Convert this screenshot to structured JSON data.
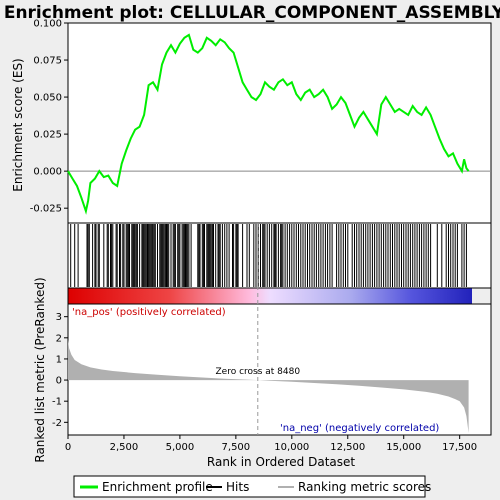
{
  "chart_data": {
    "type": "line",
    "title": "Enrichment plot: CELLULAR_COMPONENT_ASSEMBLY",
    "xlabel": "Rank in Ordered Dataset",
    "es_ylabel": "Enrichment score (ES)",
    "metric_ylabel": "Ranked list metric (PreRanked)",
    "xlim": [
      0,
      18900
    ],
    "es_ylim": [
      -0.035,
      0.1
    ],
    "metric_ylim": [
      -2.6,
      3.6
    ],
    "x_ticks": [
      0,
      2500,
      5000,
      7500,
      10000,
      12500,
      15000,
      17500
    ],
    "x_tick_labels": [
      "0",
      "2,500",
      "5,000",
      "7,500",
      "10,000",
      "12,500",
      "15,000",
      "17,500"
    ],
    "es_ticks": [
      -0.025,
      0.0,
      0.025,
      0.05,
      0.075,
      0.1
    ],
    "es_tick_labels": [
      "-0.025",
      "0.000",
      "0.025",
      "0.050",
      "0.075",
      "0.100"
    ],
    "metric_ticks": [
      -2,
      -1,
      0,
      1,
      2,
      3
    ],
    "metric_tick_labels": [
      "-2",
      "-1",
      "0",
      "1",
      "2",
      "3"
    ],
    "enrichment_profile": {
      "name": "Enrichment profile",
      "color": "#00ee00",
      "x": [
        0,
        200,
        400,
        600,
        800,
        900,
        1000,
        1200,
        1400,
        1600,
        1800,
        2000,
        2200,
        2400,
        2600,
        2800,
        3000,
        3200,
        3400,
        3600,
        3800,
        4000,
        4200,
        4400,
        4600,
        4800,
        5000,
        5200,
        5400,
        5600,
        5800,
        6000,
        6200,
        6400,
        6600,
        6800,
        7000,
        7200,
        7400,
        7600,
        7800,
        8000,
        8200,
        8400,
        8600,
        8800,
        9000,
        9200,
        9400,
        9600,
        9800,
        10000,
        10200,
        10400,
        10600,
        10800,
        11000,
        11200,
        11400,
        11600,
        11800,
        12000,
        12200,
        12400,
        12600,
        12800,
        13000,
        13200,
        13400,
        13600,
        13800,
        14000,
        14200,
        14400,
        14600,
        14800,
        15000,
        15200,
        15400,
        15600,
        15800,
        16000,
        16200,
        16400,
        16600,
        16800,
        17000,
        17200,
        17400,
        17600,
        17700,
        17800,
        17900
      ],
      "y": [
        0.0,
        -0.005,
        -0.01,
        -0.018,
        -0.027,
        -0.02,
        -0.008,
        -0.005,
        0.0,
        -0.004,
        -0.003,
        -0.008,
        -0.01,
        0.005,
        0.014,
        0.022,
        0.028,
        0.03,
        0.038,
        0.058,
        0.06,
        0.055,
        0.072,
        0.08,
        0.085,
        0.08,
        0.086,
        0.09,
        0.092,
        0.082,
        0.08,
        0.083,
        0.09,
        0.088,
        0.085,
        0.089,
        0.087,
        0.083,
        0.08,
        0.07,
        0.06,
        0.055,
        0.05,
        0.048,
        0.052,
        0.06,
        0.057,
        0.055,
        0.06,
        0.062,
        0.058,
        0.06,
        0.052,
        0.048,
        0.053,
        0.055,
        0.05,
        0.052,
        0.055,
        0.05,
        0.042,
        0.045,
        0.05,
        0.046,
        0.038,
        0.03,
        0.036,
        0.04,
        0.035,
        0.03,
        0.025,
        0.045,
        0.05,
        0.045,
        0.04,
        0.042,
        0.04,
        0.038,
        0.044,
        0.04,
        0.038,
        0.043,
        0.038,
        0.03,
        0.022,
        0.015,
        0.01,
        0.012,
        0.005,
        0.0,
        0.008,
        0.002,
        0.0
      ]
    },
    "hits": {
      "name": "Hits",
      "color": "#000000",
      "x": [
        120,
        300,
        450,
        850,
        900,
        950,
        1100,
        1200,
        1250,
        1350,
        1400,
        1600,
        1750,
        1800,
        1900,
        1950,
        2000,
        2150,
        2200,
        2300,
        2350,
        2450,
        2500,
        2600,
        2650,
        2700,
        2750,
        2850,
        2900,
        2950,
        3000,
        3050,
        3100,
        3200,
        3300,
        3350,
        3400,
        3450,
        3500,
        3550,
        3600,
        3650,
        3700,
        3750,
        3800,
        3850,
        3900,
        4000,
        4100,
        4150,
        4200,
        4250,
        4300,
        4350,
        4400,
        4450,
        4500,
        4600,
        4700,
        4750,
        4800,
        4900,
        4950,
        5000,
        5100,
        5150,
        5200,
        5250,
        5300,
        5350,
        5400,
        5500,
        5800,
        5850,
        5900,
        6000,
        6050,
        6100,
        6200,
        6250,
        6300,
        6350,
        6400,
        6450,
        6500,
        6600,
        6700,
        6750,
        6800,
        6900,
        7000,
        7100,
        7200,
        7350,
        7400,
        7500,
        7550,
        7600,
        7800,
        8000,
        8100,
        8300,
        8400,
        8500,
        8600,
        8700,
        8750,
        8800,
        8900,
        9000,
        9100,
        9200,
        9250,
        9300,
        9400,
        9500,
        9550,
        9600,
        9700,
        9800,
        9900,
        10000,
        10100,
        10200,
        10300,
        10400,
        10500,
        10600,
        10700,
        10800,
        10900,
        11000,
        11100,
        11200,
        11300,
        11400,
        11500,
        11600,
        11700,
        11800,
        12000,
        12100,
        12200,
        12300,
        12400,
        12500,
        12700,
        12800,
        12900,
        13000,
        13100,
        13200,
        13300,
        13400,
        13500,
        13600,
        13700,
        13800,
        13900,
        14000,
        14100,
        14200,
        14300,
        14400,
        14500,
        14600,
        14700,
        14800,
        14900,
        15000,
        15100,
        15200,
        15300,
        15400,
        15500,
        15600,
        15700,
        15800,
        15900,
        16000,
        16100,
        16200,
        16500,
        16700,
        16900,
        17000,
        17100,
        17200,
        17300,
        17400,
        17600,
        17700,
        17800
      ]
    },
    "ranking_metric": {
      "name": "Ranking metric scores",
      "color": "#b0b0b0",
      "x": [
        0,
        50,
        150,
        300,
        600,
        1000,
        1500,
        2000,
        3000,
        4000,
        5000,
        6000,
        7000,
        8000,
        8480,
        9000,
        10000,
        11000,
        12000,
        13000,
        14000,
        15000,
        16000,
        16500,
        17000,
        17300,
        17500,
        17700,
        17800,
        17900
      ],
      "y": [
        1.9,
        1.5,
        1.2,
        0.95,
        0.75,
        0.6,
        0.5,
        0.43,
        0.33,
        0.25,
        0.18,
        0.12,
        0.06,
        0.02,
        0.0,
        -0.03,
        -0.08,
        -0.14,
        -0.2,
        -0.27,
        -0.35,
        -0.44,
        -0.56,
        -0.65,
        -0.78,
        -0.9,
        -1.0,
        -1.3,
        -1.7,
        -2.5
      ]
    },
    "zero_cross": 8480,
    "pos_label": "'na_pos' (positively correlated)",
    "neg_label": "'na_neg' (negatively correlated)",
    "zero_label": "Zero cross at 8480",
    "legend": [
      "Enrichment profile",
      "Hits",
      "Ranking metric scores"
    ]
  }
}
